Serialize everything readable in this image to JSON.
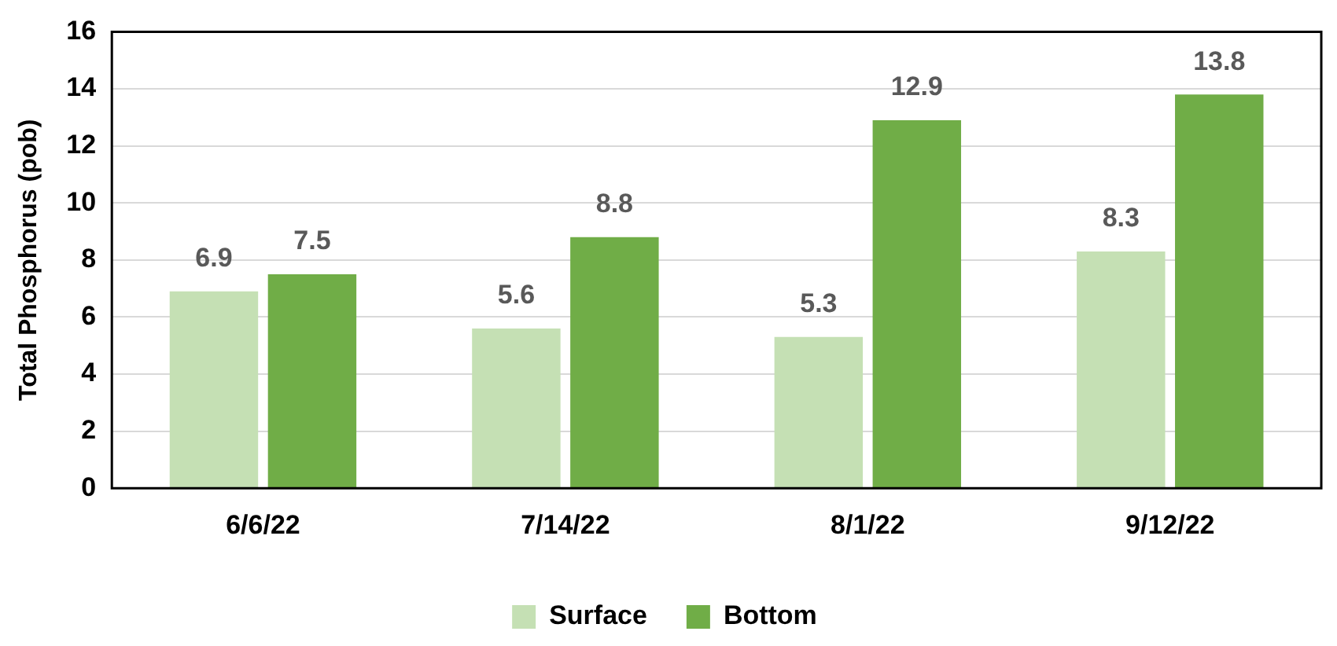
{
  "chart_data": {
    "type": "bar",
    "ylabel": "Total Phosphorus (pob)",
    "categories": [
      "6/6/22",
      "7/14/22",
      "8/1/22",
      "9/12/22"
    ],
    "series": [
      {
        "name": "Surface",
        "color": "#c5e0b4",
        "values": [
          6.9,
          5.6,
          5.3,
          8.3
        ]
      },
      {
        "name": "Bottom",
        "color": "#70ad47",
        "values": [
          7.5,
          8.8,
          12.9,
          13.8
        ]
      }
    ],
    "ylim": [
      0,
      16
    ],
    "yticks": [
      0,
      2,
      4,
      6,
      8,
      10,
      12,
      14,
      16
    ],
    "grid": "y",
    "legend": "bottom",
    "data_labels": true
  }
}
